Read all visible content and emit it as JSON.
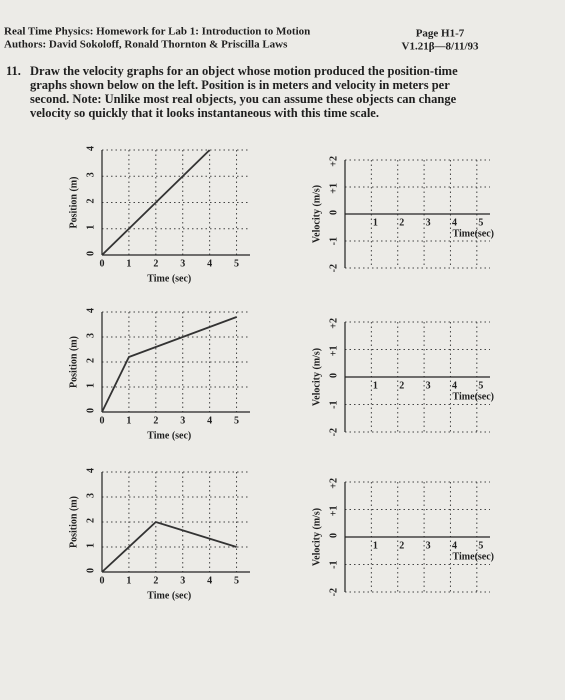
{
  "header": {
    "left": [
      "Real Time Physics: Homework for Lab 1: Introduction to Motion",
      "Authors: David Sokoloff, Ronald Thornton & Priscilla Laws"
    ],
    "right": [
      "Page H1-7",
      "V1.21β—8/11/93"
    ]
  },
  "question": {
    "number": "11.",
    "text": [
      "Draw the velocity graphs for an object whose motion produced the position-time",
      "graphs shown below on the left. Position is in meters and velocity in meters per",
      "second. Note: Unlike most real objects, you can assume these objects can change",
      "velocity so quickly that it looks instantaneous with this time scale."
    ]
  },
  "chart_data": [
    {
      "type": "line",
      "xlabel": "Time (sec)",
      "ylabel": "Position (m)",
      "xlim": [
        0,
        5.5
      ],
      "ylim": [
        0,
        4
      ],
      "xticks": [
        0,
        1,
        2,
        3,
        4,
        5
      ],
      "yticks": [
        0,
        1,
        2,
        3,
        4
      ],
      "grid": true,
      "color": "#333333",
      "x": [
        0,
        4
      ],
      "values": [
        0,
        4
      ]
    },
    {
      "type": "axes",
      "xlabel": "Time(sec)",
      "ylabel": "Velocity (m/s)",
      "xlim": [
        0,
        5.5
      ],
      "ylim": [
        -2,
        2
      ],
      "xticks": [
        1,
        2,
        3,
        4,
        5
      ],
      "yticks": [
        {
          "value": 2,
          "label": "+2"
        },
        {
          "value": 1,
          "label": "+1"
        },
        0,
        -1,
        -2
      ],
      "grid": true
    },
    {
      "type": "line",
      "xlabel": "Time (sec)",
      "ylabel": "Position (m)",
      "xlim": [
        0,
        5.5
      ],
      "ylim": [
        0,
        4
      ],
      "xticks": [
        0,
        1,
        2,
        3,
        4,
        5
      ],
      "yticks": [
        0,
        1,
        2,
        3,
        4
      ],
      "grid": true,
      "color": "#333333",
      "x": [
        0,
        1,
        5
      ],
      "values": [
        0,
        2.2,
        3.8
      ]
    },
    {
      "type": "axes",
      "xlabel": "Time(sec)",
      "ylabel": "Velocity (m/s)",
      "xlim": [
        0,
        5.5
      ],
      "ylim": [
        -2,
        2
      ],
      "xticks": [
        1,
        2,
        3,
        4,
        5
      ],
      "yticks": [
        {
          "value": 2,
          "label": "+2"
        },
        {
          "value": 1,
          "label": "+1"
        },
        0,
        -1,
        -2
      ],
      "grid": true
    },
    {
      "type": "line",
      "xlabel": "Time (sec)",
      "ylabel": "Position (m)",
      "xlim": [
        0,
        5.5
      ],
      "ylim": [
        0,
        4
      ],
      "xticks": [
        0,
        1,
        2,
        3,
        4,
        5
      ],
      "yticks": [
        0,
        1,
        2,
        3,
        4
      ],
      "grid": true,
      "color": "#333333",
      "x": [
        0,
        2,
        5
      ],
      "values": [
        0,
        2,
        1
      ]
    },
    {
      "type": "axes",
      "xlabel": "Time(sec)",
      "ylabel": "Velocity (m/s)",
      "xlim": [
        0,
        5.5
      ],
      "ylim": [
        -2,
        2
      ],
      "xticks": [
        1,
        2,
        3,
        4,
        5
      ],
      "yticks": [
        {
          "value": 2,
          "label": "+2"
        },
        {
          "value": 1,
          "label": "+1"
        },
        0,
        -1,
        -2
      ],
      "grid": true
    }
  ]
}
